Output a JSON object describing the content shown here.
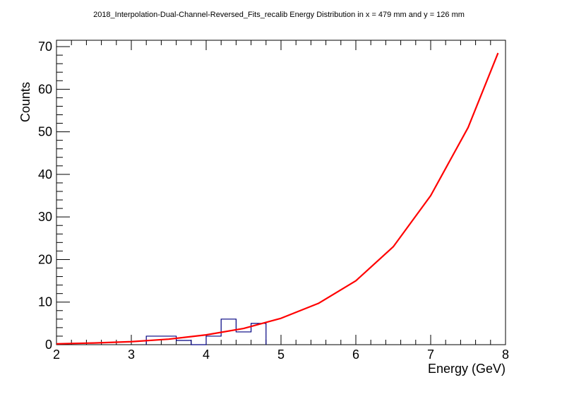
{
  "chart_data": {
    "type": "histogram",
    "title": "2018_Interpolation-Dual-Channel-Reversed_Fits_recalib Energy Distribution in x = 479 mm and y = 126 mm",
    "xlabel": "Energy (GeV)",
    "ylabel": "Counts",
    "xlim": [
      2,
      8
    ],
    "ylim": [
      0,
      71.5
    ],
    "x_ticks": [
      2,
      3,
      4,
      5,
      6,
      7,
      8
    ],
    "y_ticks": [
      0,
      10,
      20,
      30,
      40,
      50,
      60,
      70
    ],
    "grid": false,
    "legend": "none",
    "histogram": {
      "color": "#000080",
      "bins": [
        {
          "x0": 3.2,
          "x1": 3.4,
          "count": 2
        },
        {
          "x0": 3.4,
          "x1": 3.6,
          "count": 2
        },
        {
          "x0": 3.6,
          "x1": 3.8,
          "count": 1
        },
        {
          "x0": 3.8,
          "x1": 4.0,
          "count": 0
        },
        {
          "x0": 4.0,
          "x1": 4.2,
          "count": 2
        },
        {
          "x0": 4.2,
          "x1": 4.4,
          "count": 6
        },
        {
          "x0": 4.4,
          "x1": 4.6,
          "count": 3
        },
        {
          "x0": 4.6,
          "x1": 4.8,
          "count": 5
        }
      ]
    },
    "fit": {
      "color": "#ff0000",
      "function": "exponential",
      "x": [
        2.0,
        2.5,
        3.0,
        3.5,
        4.0,
        4.5,
        5.0,
        5.5,
        6.0,
        6.5,
        7.0,
        7.5,
        7.9
      ],
      "y": [
        0.2,
        0.4,
        0.7,
        1.3,
        2.3,
        3.8,
        6.2,
        9.7,
        15.0,
        23.0,
        35.0,
        51.0,
        68.5
      ]
    }
  }
}
